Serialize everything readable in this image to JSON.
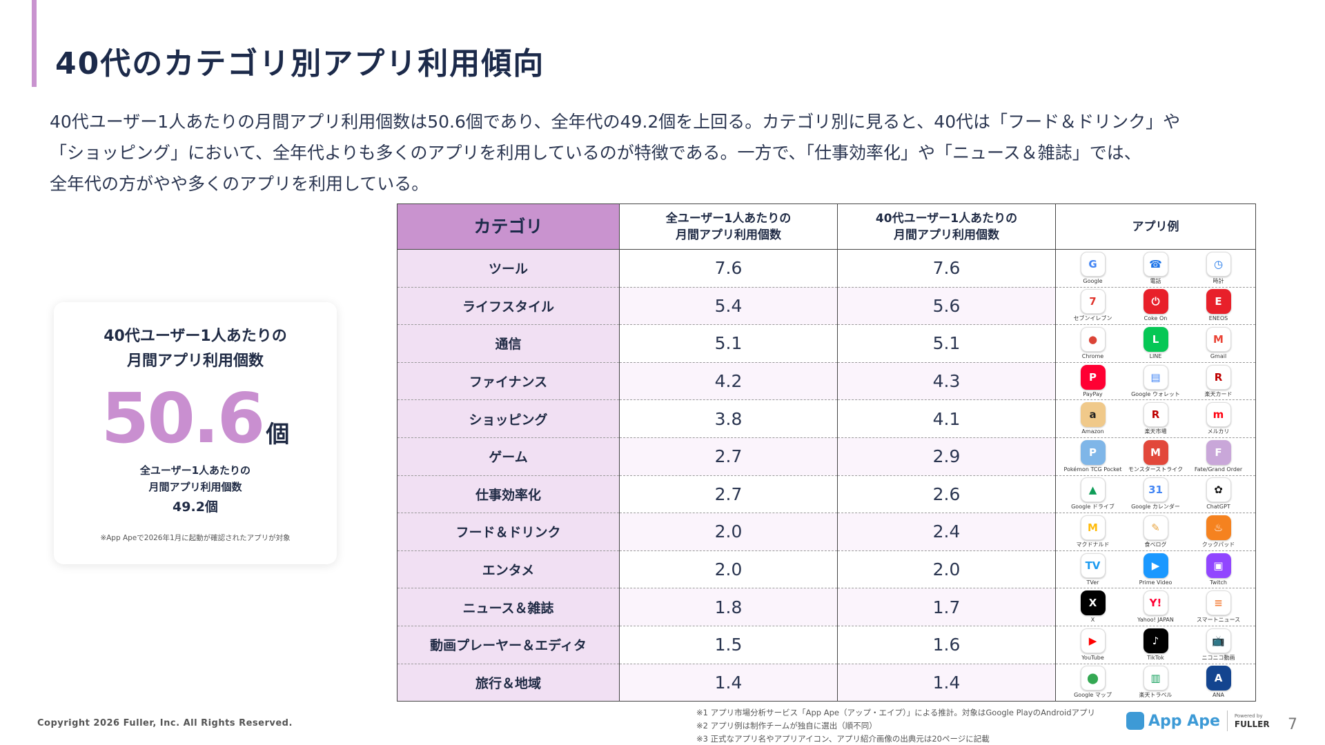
{
  "title": "40代のカテゴリ別アプリ利用傾向",
  "description": [
    "40代ユーザー1人あたりの月間アプリ利用個数は50.6個であり、全年代の49.2個を上回る。カテゴリ別に見ると、40代は「フード＆ドリンク」や",
    "「ショッピング」において、全年代よりも多くのアプリを利用しているのが特徴である。一方で、「仕事効率化」や「ニュース＆雑誌」では、",
    "全年代の方がやや多くのアプリを利用している。"
  ],
  "stat_card": {
    "label_line1": "40代ユーザー1人あたりの",
    "label_line2": "月間アプリ利用個数",
    "value": "50.6",
    "unit": "個",
    "sub_label_line1": "全ユーザー1人あたりの",
    "sub_label_line2": "月間アプリ利用個数",
    "sub_value": "49.2個",
    "note": "※App Apeで2026年1月に起動が確認されたアプリが対象"
  },
  "table": {
    "headers": {
      "category": "カテゴリ",
      "all_line1": "全ユーザー1人あたりの",
      "all_line2": "月間アプリ利用個数",
      "forties_line1": "40代ユーザー1人あたりの",
      "forties_line2": "月間アプリ利用個数",
      "apps": "アプリ例"
    },
    "rows": [
      {
        "category": "ツール",
        "all": "7.6",
        "forties": "7.6",
        "apps": [
          {
            "name": "Google",
            "glyph": "G",
            "color": "#ffffff",
            "fg": "#4285f4"
          },
          {
            "name": "電話",
            "glyph": "☎",
            "color": "#ffffff",
            "fg": "#1a73e8"
          },
          {
            "name": "時計",
            "glyph": "◷",
            "color": "#ffffff",
            "fg": "#1a73e8"
          }
        ]
      },
      {
        "category": "ライフスタイル",
        "all": "5.4",
        "forties": "5.6",
        "apps": [
          {
            "name": "セブンイレブン",
            "glyph": "7",
            "color": "#ffffff",
            "fg": "#e0332b"
          },
          {
            "name": "Coke On",
            "glyph": "⏻",
            "color": "#e8202a",
            "fg": "#ffffff"
          },
          {
            "name": "ENEOS",
            "glyph": "E",
            "color": "#e8202a",
            "fg": "#ffffff"
          }
        ]
      },
      {
        "category": "通信",
        "all": "5.1",
        "forties": "5.1",
        "apps": [
          {
            "name": "Chrome",
            "glyph": "●",
            "color": "#ffffff",
            "fg": "#db4437"
          },
          {
            "name": "LINE",
            "glyph": "L",
            "color": "#06c755",
            "fg": "#ffffff"
          },
          {
            "name": "Gmail",
            "glyph": "M",
            "color": "#ffffff",
            "fg": "#ea4335"
          }
        ]
      },
      {
        "category": "ファイナンス",
        "all": "4.2",
        "forties": "4.3",
        "apps": [
          {
            "name": "PayPay",
            "glyph": "P",
            "color": "#ff0033",
            "fg": "#ffffff"
          },
          {
            "name": "Google ウォレット",
            "glyph": "▤",
            "color": "#ffffff",
            "fg": "#4285f4"
          },
          {
            "name": "楽天カード",
            "glyph": "R",
            "color": "#ffffff",
            "fg": "#bf0000"
          }
        ]
      },
      {
        "category": "ショッピング",
        "all": "3.8",
        "forties": "4.1",
        "apps": [
          {
            "name": "Amazon",
            "glyph": "a",
            "color": "#f0c98a",
            "fg": "#222222"
          },
          {
            "name": "楽天市場",
            "glyph": "R",
            "color": "#ffffff",
            "fg": "#bf0000"
          },
          {
            "name": "メルカリ",
            "glyph": "m",
            "color": "#ffffff",
            "fg": "#ff0211"
          }
        ]
      },
      {
        "category": "ゲーム",
        "all": "2.7",
        "forties": "2.9",
        "apps": [
          {
            "name": "Pokémon TCG Pocket",
            "glyph": "P",
            "color": "#7fb6e8",
            "fg": "#ffffff"
          },
          {
            "name": "モンスターストライク",
            "glyph": "M",
            "color": "#e2483b",
            "fg": "#ffffff"
          },
          {
            "name": "Fate/Grand Order",
            "glyph": "F",
            "color": "#c9a7d9",
            "fg": "#ffffff"
          }
        ]
      },
      {
        "category": "仕事効率化",
        "all": "2.7",
        "forties": "2.6",
        "apps": [
          {
            "name": "Google ドライブ",
            "glyph": "▲",
            "color": "#ffffff",
            "fg": "#0f9d58"
          },
          {
            "name": "Google カレンダー",
            "glyph": "31",
            "color": "#ffffff",
            "fg": "#4285f4"
          },
          {
            "name": "ChatGPT",
            "glyph": "✿",
            "color": "#ffffff",
            "fg": "#111111"
          }
        ]
      },
      {
        "category": "フード＆ドリンク",
        "all": "2.0",
        "forties": "2.4",
        "apps": [
          {
            "name": "マクドナルド",
            "glyph": "M",
            "color": "#ffffff",
            "fg": "#ffbc0d"
          },
          {
            "name": "食べログ",
            "glyph": "✎",
            "color": "#ffffff",
            "fg": "#e8a33d"
          },
          {
            "name": "クックパッド",
            "glyph": "♨",
            "color": "#f5821f",
            "fg": "#ffffff"
          }
        ]
      },
      {
        "category": "エンタメ",
        "all": "2.0",
        "forties": "2.0",
        "apps": [
          {
            "name": "TVer",
            "glyph": "TV",
            "color": "#ffffff",
            "fg": "#1d9bf0"
          },
          {
            "name": "Prime Video",
            "glyph": "▶",
            "color": "#1a98ff",
            "fg": "#ffffff"
          },
          {
            "name": "Twitch",
            "glyph": "▣",
            "color": "#9146ff",
            "fg": "#ffffff"
          }
        ]
      },
      {
        "category": "ニュース＆雑誌",
        "all": "1.8",
        "forties": "1.7",
        "apps": [
          {
            "name": "X",
            "glyph": "X",
            "color": "#000000",
            "fg": "#ffffff"
          },
          {
            "name": "Yahoo! JAPAN",
            "glyph": "Y!",
            "color": "#ffffff",
            "fg": "#ff0033"
          },
          {
            "name": "スマートニュース",
            "glyph": "≡",
            "color": "#ffffff",
            "fg": "#f47f3a"
          }
        ]
      },
      {
        "category": "動画プレーヤー＆エディタ",
        "all": "1.5",
        "forties": "1.6",
        "apps": [
          {
            "name": "YouTube",
            "glyph": "▶",
            "color": "#ffffff",
            "fg": "#ff0000"
          },
          {
            "name": "TikTok",
            "glyph": "♪",
            "color": "#000000",
            "fg": "#ffffff"
          },
          {
            "name": "ニコニコ動画",
            "glyph": "📺",
            "color": "#ffffff",
            "fg": "#333333"
          }
        ]
      },
      {
        "category": "旅行＆地域",
        "all": "1.4",
        "forties": "1.4",
        "apps": [
          {
            "name": "Google マップ",
            "glyph": "⬤",
            "color": "#ffffff",
            "fg": "#34a853"
          },
          {
            "name": "楽天トラベル",
            "glyph": "▥",
            "color": "#ffffff",
            "fg": "#0f9d58"
          },
          {
            "name": "ANA",
            "glyph": "A",
            "color": "#13448f",
            "fg": "#ffffff"
          }
        ]
      }
    ]
  },
  "footer": {
    "copyright": "Copyright 2026 Fuller, Inc. All Rights Reserved.",
    "notes": [
      "※1 アプリ市場分析サービス「App Ape（アップ・エイプ）」による推計。対象はGoogle PlayのAndroidアプリ",
      "※2 アプリ例は制作チームが独自に選出（順不同）",
      "※3 正式なアプリ名やアプリアイコン、アプリ紹介画像の出典元は20ページに記載"
    ],
    "brand_name": "App Ape",
    "powered_by": "Powered by",
    "company": "FULLER",
    "page_number": "7"
  }
}
